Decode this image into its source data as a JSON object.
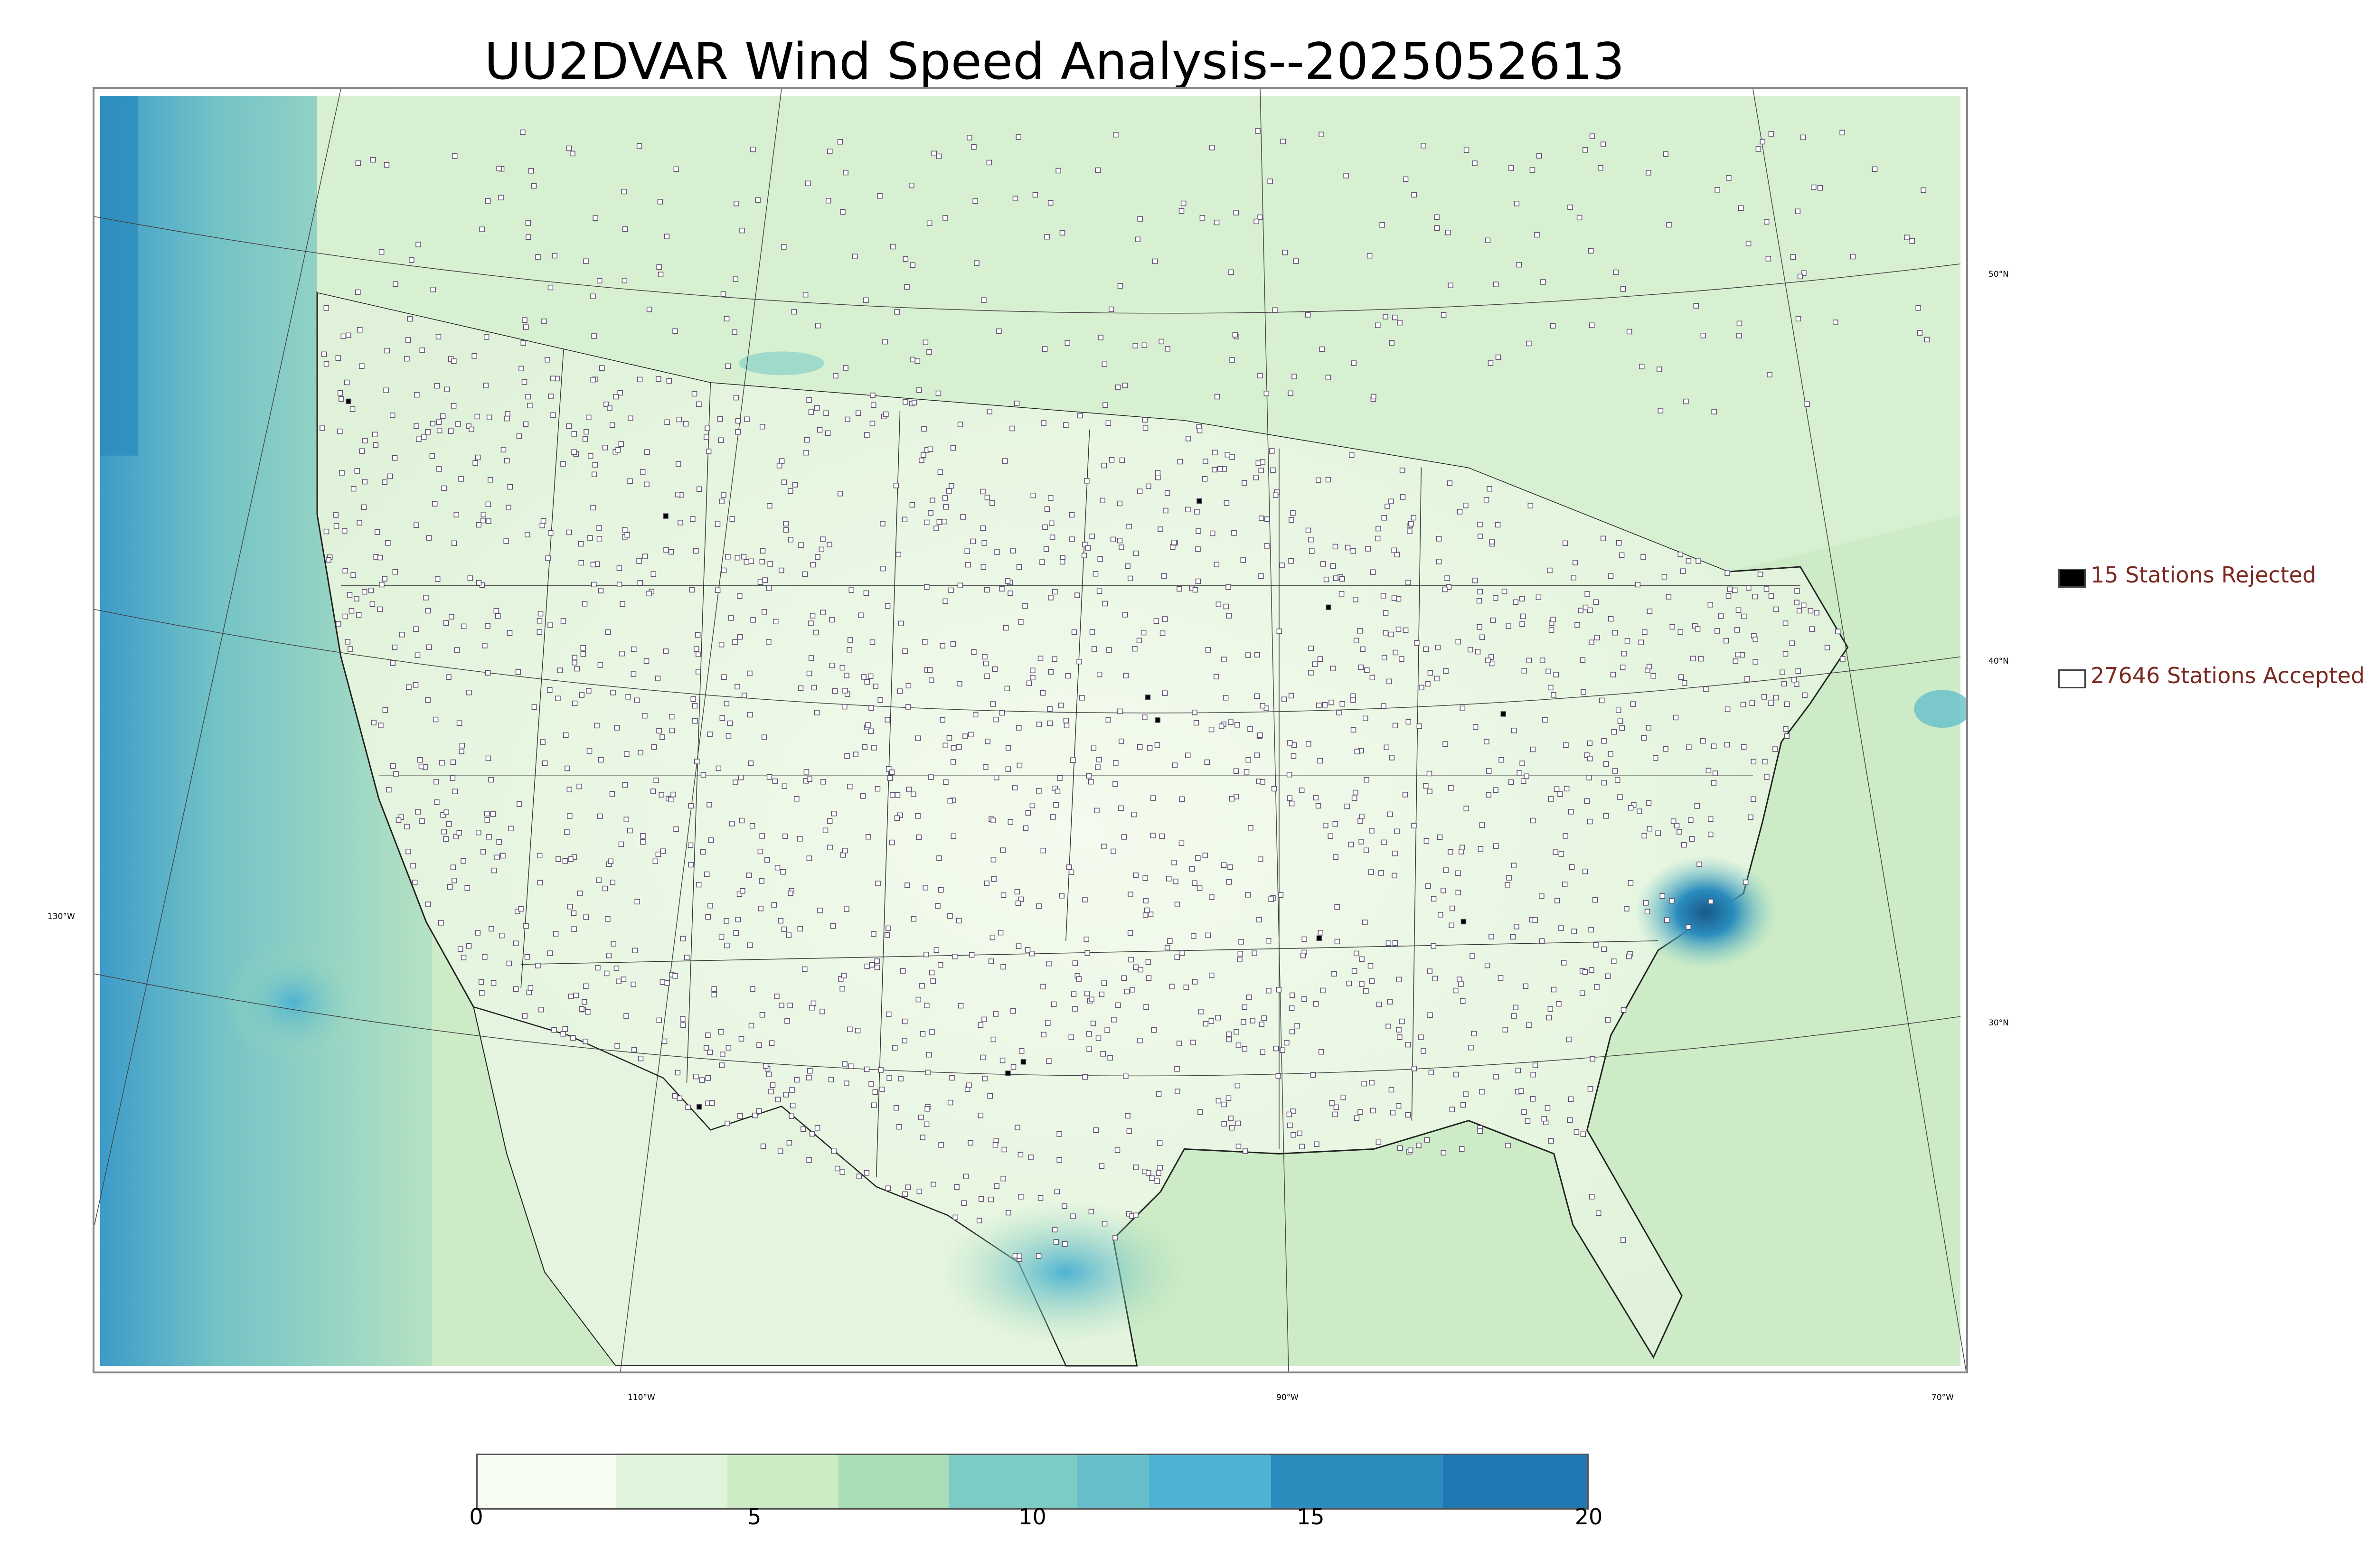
{
  "title": "UU2DVAR Wind Speed Analysis--2025052613",
  "graticule_labels": {
    "lon": [
      "130°W",
      "110°W",
      "90°W",
      "70°W"
    ],
    "lat": [
      "50°N",
      "40°N",
      "30°N"
    ]
  },
  "legend": {
    "rejected": {
      "label": "15 Stations Rejected",
      "swatch_color": "#000000"
    },
    "accepted": {
      "label": "27646 Stations Accepted",
      "swatch_color": "#ffffff"
    }
  },
  "colorbar": {
    "min": 0,
    "max": 20,
    "ticks": [
      "0",
      "5",
      "10",
      "15",
      "20"
    ],
    "colors": [
      "#f7fcf0",
      "#e0f3db",
      "#ccebc5",
      "#a8ddb5",
      "#7bccc4",
      "#67bfcc",
      "#4eb3d3",
      "#2b8cbe",
      "#1f78b4",
      "#165a8a"
    ],
    "stops": [
      0,
      2.5,
      4.5,
      6.5,
      8.5,
      10.8,
      12.1,
      14.3,
      17.4,
      20
    ]
  }
}
